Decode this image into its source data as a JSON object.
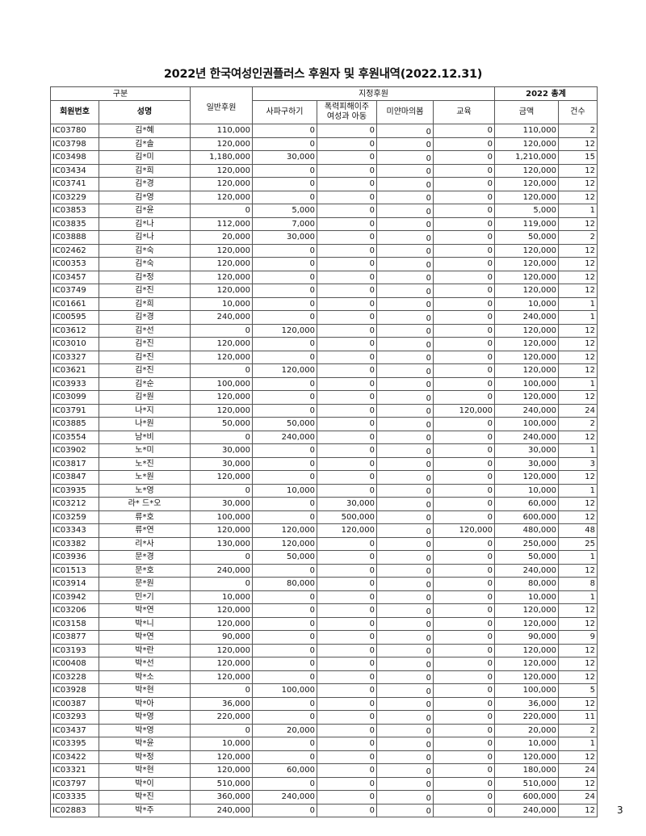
{
  "title": "2022년 한국여성인권플러스 후원자 및 후원내역(2022.12.31)",
  "header": {
    "group_category": "구분",
    "general": "일반후원",
    "designated": "지정후원",
    "total_group": "2022 총계",
    "member_no": "회원번호",
    "name": "성명",
    "sapa": "사파구하기",
    "violence_line1": "폭력피해이주",
    "violence_line2": "여성과 아동",
    "myanmar": "미얀마의봄",
    "education": "교육",
    "amount": "금액",
    "count": "건수"
  },
  "rows": [
    [
      "IC03780",
      "김*혜",
      "110,000",
      "0",
      "0",
      "0",
      "0",
      "110,000",
      "2"
    ],
    [
      "IC03798",
      "김*솔",
      "120,000",
      "0",
      "0",
      "0",
      "0",
      "120,000",
      "12"
    ],
    [
      "IC03498",
      "김*미",
      "1,180,000",
      "30,000",
      "0",
      "0",
      "0",
      "1,210,000",
      "15"
    ],
    [
      "IC03434",
      "김*희",
      "120,000",
      "0",
      "0",
      "0",
      "0",
      "120,000",
      "12"
    ],
    [
      "IC03741",
      "김*경",
      "120,000",
      "0",
      "0",
      "0",
      "0",
      "120,000",
      "12"
    ],
    [
      "IC03229",
      "김*영",
      "120,000",
      "0",
      "0",
      "0",
      "0",
      "120,000",
      "12"
    ],
    [
      "IC03853",
      "김*윤",
      "0",
      "5,000",
      "0",
      "0",
      "0",
      "5,000",
      "1"
    ],
    [
      "IC03835",
      "김*나",
      "112,000",
      "7,000",
      "0",
      "0",
      "0",
      "119,000",
      "12"
    ],
    [
      "IC03888",
      "김*나",
      "20,000",
      "30,000",
      "0",
      "0",
      "0",
      "50,000",
      "2"
    ],
    [
      "IC02462",
      "김*숙",
      "120,000",
      "0",
      "0",
      "0",
      "0",
      "120,000",
      "12"
    ],
    [
      "IC00353",
      "김*숙",
      "120,000",
      "0",
      "0",
      "0",
      "0",
      "120,000",
      "12"
    ],
    [
      "IC03457",
      "김*정",
      "120,000",
      "0",
      "0",
      "0",
      "0",
      "120,000",
      "12"
    ],
    [
      "IC03749",
      "김*진",
      "120,000",
      "0",
      "0",
      "0",
      "0",
      "120,000",
      "12"
    ],
    [
      "IC01661",
      "김*희",
      "10,000",
      "0",
      "0",
      "0",
      "0",
      "10,000",
      "1"
    ],
    [
      "IC00595",
      "김*경",
      "240,000",
      "0",
      "0",
      "0",
      "0",
      "240,000",
      "1"
    ],
    [
      "IC03612",
      "김*선",
      "0",
      "120,000",
      "0",
      "0",
      "0",
      "120,000",
      "12"
    ],
    [
      "IC03010",
      "김*진",
      "120,000",
      "0",
      "0",
      "0",
      "0",
      "120,000",
      "12"
    ],
    [
      "IC03327",
      "김*진",
      "120,000",
      "0",
      "0",
      "0",
      "0",
      "120,000",
      "12"
    ],
    [
      "IC03621",
      "김*진",
      "0",
      "120,000",
      "0",
      "0",
      "0",
      "120,000",
      "12"
    ],
    [
      "IC03933",
      "김*순",
      "100,000",
      "0",
      "0",
      "0",
      "0",
      "100,000",
      "1"
    ],
    [
      "IC03099",
      "김*원",
      "120,000",
      "0",
      "0",
      "0",
      "0",
      "120,000",
      "12"
    ],
    [
      "IC03791",
      "나*지",
      "120,000",
      "0",
      "0",
      "0",
      "120,000",
      "240,000",
      "24"
    ],
    [
      "IC03885",
      "나*원",
      "50,000",
      "50,000",
      "0",
      "0",
      "0",
      "100,000",
      "2"
    ],
    [
      "IC03554",
      "남*비",
      "0",
      "240,000",
      "0",
      "0",
      "0",
      "240,000",
      "12"
    ],
    [
      "IC03902",
      "노*미",
      "30,000",
      "0",
      "0",
      "0",
      "0",
      "30,000",
      "1"
    ],
    [
      "IC03817",
      "노*진",
      "30,000",
      "0",
      "0",
      "0",
      "0",
      "30,000",
      "3"
    ],
    [
      "IC03847",
      "노*원",
      "120,000",
      "0",
      "0",
      "0",
      "0",
      "120,000",
      "12"
    ],
    [
      "IC03935",
      "노*영",
      "0",
      "10,000",
      "0",
      "0",
      "0",
      "10,000",
      "1"
    ],
    [
      "IC03212",
      "라* 드*오",
      "30,000",
      "0",
      "30,000",
      "0",
      "0",
      "60,000",
      "12"
    ],
    [
      "IC03259",
      "류*호",
      "100,000",
      "0",
      "500,000",
      "0",
      "0",
      "600,000",
      "12"
    ],
    [
      "IC03343",
      "류*연",
      "120,000",
      "120,000",
      "120,000",
      "0",
      "120,000",
      "480,000",
      "48"
    ],
    [
      "IC03382",
      "리*사",
      "130,000",
      "120,000",
      "0",
      "0",
      "0",
      "250,000",
      "25"
    ],
    [
      "IC03936",
      "문*경",
      "0",
      "50,000",
      "0",
      "0",
      "0",
      "50,000",
      "1"
    ],
    [
      "IC01513",
      "문*호",
      "240,000",
      "0",
      "0",
      "0",
      "0",
      "240,000",
      "12"
    ],
    [
      "IC03914",
      "문*원",
      "0",
      "80,000",
      "0",
      "0",
      "0",
      "80,000",
      "8"
    ],
    [
      "IC03942",
      "민*기",
      "10,000",
      "0",
      "0",
      "0",
      "0",
      "10,000",
      "1"
    ],
    [
      "IC03206",
      "박*연",
      "120,000",
      "0",
      "0",
      "0",
      "0",
      "120,000",
      "12"
    ],
    [
      "IC03158",
      "박*니",
      "120,000",
      "0",
      "0",
      "0",
      "0",
      "120,000",
      "12"
    ],
    [
      "IC03877",
      "박*연",
      "90,000",
      "0",
      "0",
      "0",
      "0",
      "90,000",
      "9"
    ],
    [
      "IC03193",
      "박*란",
      "120,000",
      "0",
      "0",
      "0",
      "0",
      "120,000",
      "12"
    ],
    [
      "IC00408",
      "박*선",
      "120,000",
      "0",
      "0",
      "0",
      "0",
      "120,000",
      "12"
    ],
    [
      "IC03228",
      "박*소",
      "120,000",
      "0",
      "0",
      "0",
      "0",
      "120,000",
      "12"
    ],
    [
      "IC03928",
      "박*현",
      "0",
      "100,000",
      "0",
      "0",
      "0",
      "100,000",
      "5"
    ],
    [
      "IC00387",
      "박*아",
      "36,000",
      "0",
      "0",
      "0",
      "0",
      "36,000",
      "12"
    ],
    [
      "IC03293",
      "박*영",
      "220,000",
      "0",
      "0",
      "0",
      "0",
      "220,000",
      "11"
    ],
    [
      "IC03437",
      "박*영",
      "0",
      "20,000",
      "0",
      "0",
      "0",
      "20,000",
      "2"
    ],
    [
      "IC03395",
      "박*윤",
      "10,000",
      "0",
      "0",
      "0",
      "0",
      "10,000",
      "1"
    ],
    [
      "IC03422",
      "박*정",
      "120,000",
      "0",
      "0",
      "0",
      "0",
      "120,000",
      "12"
    ],
    [
      "IC03321",
      "박*현",
      "120,000",
      "60,000",
      "0",
      "0",
      "0",
      "180,000",
      "24"
    ],
    [
      "IC03797",
      "박*이",
      "510,000",
      "0",
      "0",
      "0",
      "0",
      "510,000",
      "12"
    ],
    [
      "IC03335",
      "박*진",
      "360,000",
      "240,000",
      "0",
      "0",
      "0",
      "600,000",
      "24"
    ],
    [
      "IC02883",
      "박*주",
      "240,000",
      "0",
      "0",
      "0",
      "0",
      "240,000",
      "12"
    ]
  ],
  "page_number": "3"
}
